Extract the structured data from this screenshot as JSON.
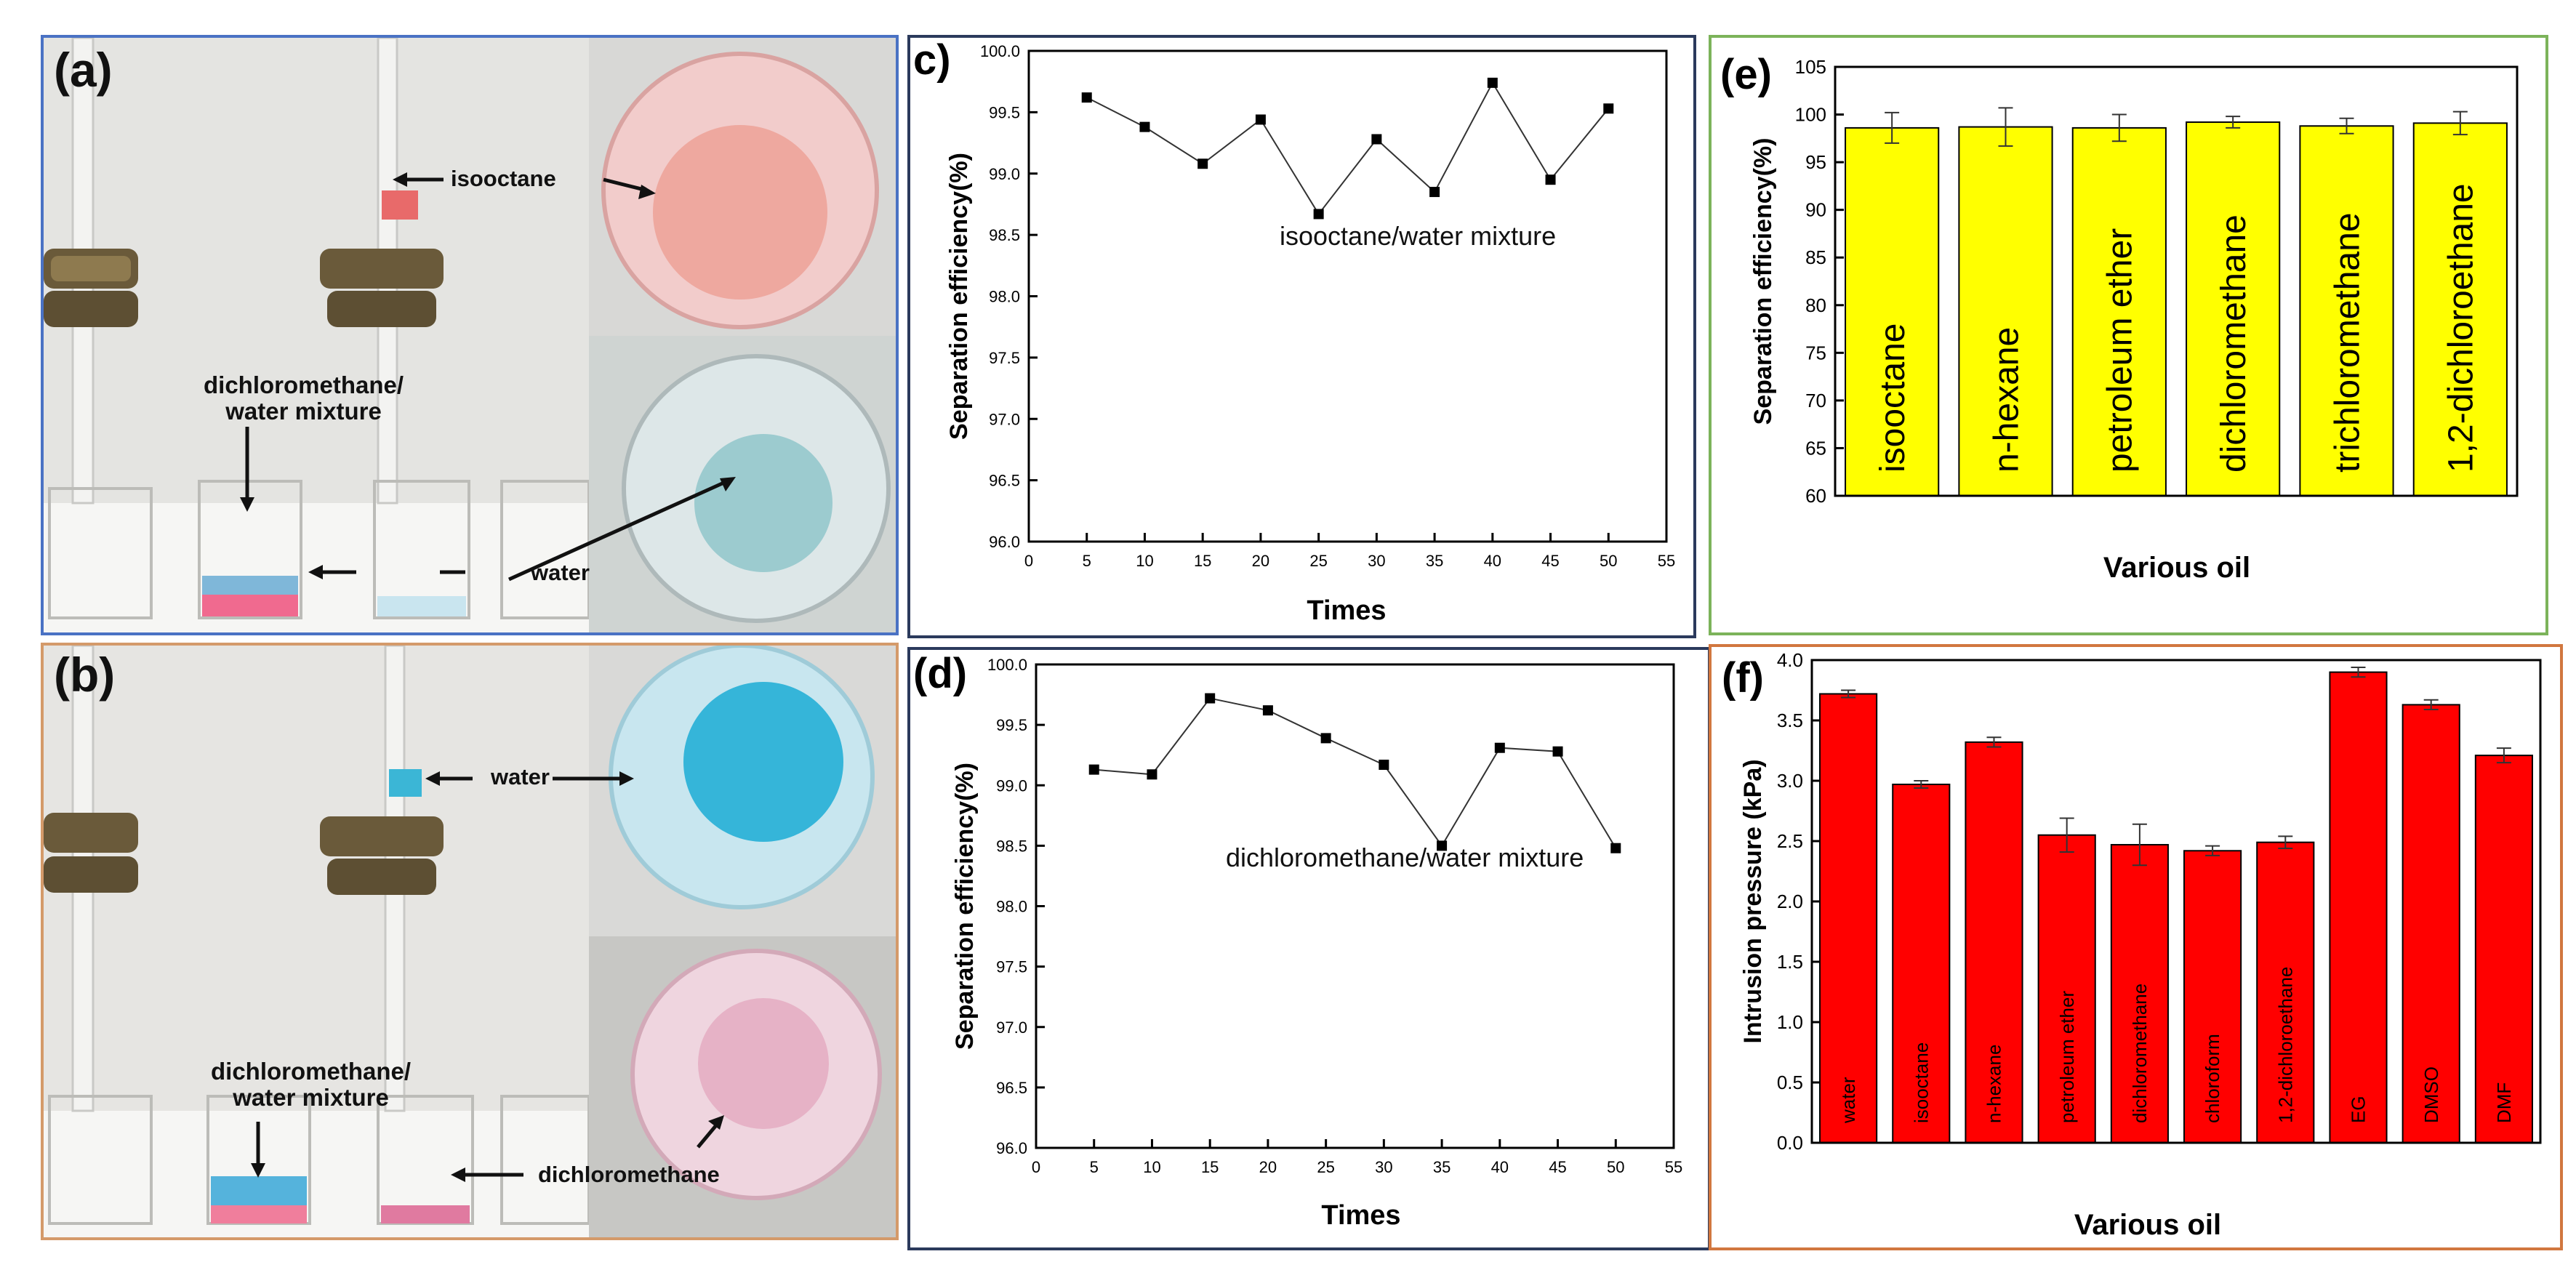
{
  "panels": {
    "a": {
      "letter": "(a)",
      "labels": {
        "isooctane": "isooctane",
        "mixture_line1": "dichloromethane/",
        "mixture_line2": "water mixture",
        "water": "water"
      }
    },
    "b": {
      "letter": "(b)",
      "labels": {
        "water": "water",
        "mixture_line1": "dichloromethane/",
        "mixture_line2": "water mixture",
        "dichloromethane": "dichloromethane"
      }
    }
  },
  "chart_data": [
    {
      "panel": "c",
      "letter": "c)",
      "type": "line",
      "annotation": "isooctane/water mixture",
      "xlabel": "Times",
      "ylabel": "Separation efficiency(%)",
      "xlim": [
        0,
        55
      ],
      "ylim": [
        96.0,
        100.0
      ],
      "xticks": [
        "0",
        "5",
        "10",
        "15",
        "20",
        "25",
        "30",
        "35",
        "40",
        "45",
        "50",
        "55"
      ],
      "yticks": [
        "96.0",
        "96.5",
        "97.0",
        "97.5",
        "98.0",
        "98.5",
        "99.0",
        "99.5",
        "100.0"
      ],
      "x": [
        5,
        10,
        15,
        20,
        25,
        30,
        35,
        40,
        45,
        50
      ],
      "y": [
        99.62,
        99.38,
        99.08,
        99.44,
        98.67,
        99.28,
        98.85,
        99.74,
        98.95,
        99.53
      ]
    },
    {
      "panel": "d",
      "letter": "(d)",
      "type": "line",
      "annotation": "dichloromethane/water mixture",
      "xlabel": "Times",
      "ylabel": "Separation efficiency(%)",
      "xlim": [
        0,
        55
      ],
      "ylim": [
        96.0,
        100.0
      ],
      "xticks": [
        "0",
        "5",
        "10",
        "15",
        "20",
        "25",
        "30",
        "35",
        "40",
        "45",
        "50",
        "55"
      ],
      "yticks": [
        "96.0",
        "96.5",
        "97.0",
        "97.5",
        "98.0",
        "98.5",
        "99.0",
        "99.5",
        "100.0"
      ],
      "x": [
        5,
        10,
        15,
        20,
        25,
        30,
        35,
        40,
        45,
        50
      ],
      "y": [
        99.13,
        99.09,
        99.72,
        99.62,
        99.39,
        99.17,
        98.5,
        99.31,
        99.28,
        98.48
      ]
    },
    {
      "panel": "e",
      "letter": "(e)",
      "type": "bar",
      "xlabel": "Various oil",
      "ylabel": "Separation efficiency(%)",
      "ylim": [
        60,
        105
      ],
      "yticks": [
        "60",
        "65",
        "70",
        "75",
        "80",
        "85",
        "90",
        "95",
        "100",
        "105"
      ],
      "categories": [
        "isooctane",
        "n-hexane",
        "petroleum ether",
        "dichloromethane",
        "trichloromethane",
        "1,2-dichloroethane"
      ],
      "values": [
        98.6,
        98.7,
        98.6,
        99.2,
        98.8,
        99.1
      ],
      "errors": [
        1.6,
        2.0,
        1.4,
        0.6,
        0.8,
        1.2
      ],
      "color": "#ffff00"
    },
    {
      "panel": "f",
      "letter": "(f)",
      "type": "bar",
      "xlabel": "Various oil",
      "ylabel": "Intrusion pressure (kPa)",
      "ylim": [
        0,
        4.0
      ],
      "yticks": [
        "0.0",
        "0.5",
        "1.0",
        "1.5",
        "2.0",
        "2.5",
        "3.0",
        "3.5",
        "4.0"
      ],
      "categories": [
        "water",
        "isooctane",
        "n-hexane",
        "petroleum ether",
        "dichloromethane",
        "chloroform",
        "1,2-dichloroethane",
        "EG",
        "DMSO",
        "DMF"
      ],
      "values": [
        3.72,
        2.97,
        3.32,
        2.55,
        2.47,
        2.42,
        2.49,
        3.9,
        3.63,
        3.21
      ],
      "errors": [
        0.03,
        0.03,
        0.04,
        0.14,
        0.17,
        0.04,
        0.05,
        0.04,
        0.04,
        0.06
      ],
      "color": "#ff0000"
    }
  ]
}
